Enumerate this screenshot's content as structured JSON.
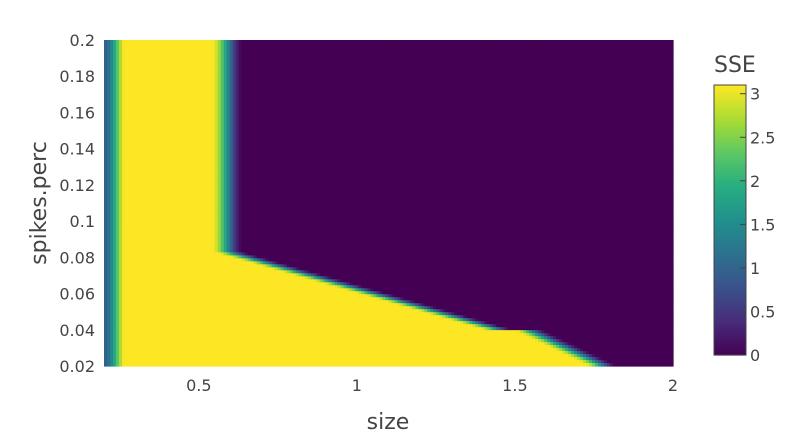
{
  "chart_data": {
    "type": "heatmap",
    "title": "",
    "xlabel": "size",
    "ylabel": "spikes.perc",
    "xlim": [
      0.2,
      2
    ],
    "ylim": [
      0.02,
      0.2
    ],
    "x_ticks": [
      0.5,
      1,
      1.5,
      2
    ],
    "x_tick_labels": [
      "0.5",
      "1",
      "1.5",
      "2"
    ],
    "y_ticks": [
      0.02,
      0.04,
      0.06,
      0.08,
      0.1,
      0.12,
      0.14,
      0.16,
      0.18,
      0.2
    ],
    "y_tick_labels": [
      "0.02",
      "0.04",
      "0.06",
      "0.08",
      "0.1",
      "0.12",
      "0.14",
      "0.16",
      "0.18",
      "0.2"
    ],
    "colorbar": {
      "title": "SSE",
      "range": [
        0,
        3.1
      ],
      "ticks": [
        0,
        0.5,
        1,
        1.5,
        2,
        2.5,
        3
      ],
      "tick_labels": [
        "0",
        "0.5",
        "1",
        "1.5",
        "2",
        "2.5",
        "3"
      ],
      "colorscale": "viridis"
    },
    "z_description_points": [
      {
        "size": 0.22,
        "spikes_perc": 0.1,
        "sse": 1.6
      },
      {
        "size": 0.4,
        "spikes_perc": 0.1,
        "sse": 3.1
      },
      {
        "size": 0.55,
        "spikes_perc": 0.1,
        "sse": 1.2
      },
      {
        "size": 1.2,
        "spikes_perc": 0.15,
        "sse": 0.0
      },
      {
        "size": 1.2,
        "spikes_perc": 0.03,
        "sse": 3.1
      },
      {
        "size": 1.9,
        "spikes_perc": 0.03,
        "sse": 0.0
      }
    ]
  }
}
